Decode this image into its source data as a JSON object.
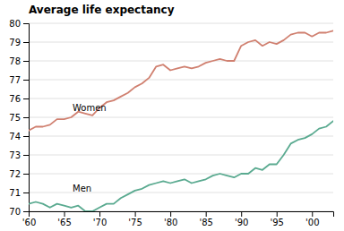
{
  "chart_data": {
    "type": "line",
    "title": "Average life expectancy",
    "x": [
      1960,
      1961,
      1962,
      1963,
      1964,
      1965,
      1966,
      1967,
      1968,
      1969,
      1970,
      1971,
      1972,
      1973,
      1974,
      1975,
      1976,
      1977,
      1978,
      1979,
      1980,
      1981,
      1982,
      1983,
      1984,
      1985,
      1986,
      1987,
      1988,
      1989,
      1990,
      1991,
      1992,
      1993,
      1994,
      1995,
      1996,
      1997,
      1998,
      1999,
      2000,
      2001,
      2002,
      2003
    ],
    "series": [
      {
        "color": "#d08070",
        "values": [
          74.3,
          74.5,
          74.5,
          74.6,
          74.9,
          74.9,
          75.0,
          75.3,
          75.2,
          75.1,
          75.5,
          75.8,
          75.9,
          76.1,
          76.3,
          76.6,
          76.8,
          77.1,
          77.7,
          77.8,
          77.5,
          77.6,
          77.7,
          77.6,
          77.7,
          77.9,
          78.0,
          78.1,
          78.0,
          78.0,
          78.8,
          79.0,
          79.1,
          78.8,
          79.0,
          78.9,
          79.1,
          79.4,
          79.5,
          79.5,
          79.3,
          79.5,
          79.5,
          79.6
        ]
      },
      {
        "color": "#5aaa90",
        "values": [
          70.4,
          70.5,
          70.4,
          70.2,
          70.4,
          70.3,
          70.2,
          70.3,
          70.0,
          70.0,
          70.2,
          70.4,
          70.4,
          70.7,
          70.9,
          71.1,
          71.2,
          71.4,
          71.5,
          71.6,
          71.5,
          71.6,
          71.7,
          71.5,
          71.6,
          71.7,
          71.9,
          72.0,
          71.9,
          71.8,
          72.0,
          72.0,
          72.3,
          72.2,
          72.5,
          72.5,
          73.0,
          73.6,
          73.8,
          73.9,
          74.1,
          74.4,
          74.5,
          74.8
        ]
      }
    ],
    "annotations": [
      {
        "text": "Women",
        "x": 1966.2,
        "y": 75.5
      },
      {
        "text": "Men",
        "x": 1966.2,
        "y": 71.2
      }
    ],
    "xlim": [
      1960,
      2003
    ],
    "xticks": [
      {
        "value": 1960,
        "label": "'60"
      },
      {
        "value": 1965,
        "label": "'65"
      },
      {
        "value": 1970,
        "label": "'70"
      },
      {
        "value": 1975,
        "label": "'75"
      },
      {
        "value": 1980,
        "label": "'80"
      },
      {
        "value": 1985,
        "label": "'85"
      },
      {
        "value": 1990,
        "label": "'90"
      },
      {
        "value": 1995,
        "label": "'95"
      },
      {
        "value": 2000,
        "label": "'00"
      }
    ],
    "ylim": [
      70,
      80
    ],
    "yticks": [
      70,
      71,
      72,
      73,
      74,
      75,
      76,
      77,
      78,
      79,
      80
    ],
    "grid": true
  }
}
